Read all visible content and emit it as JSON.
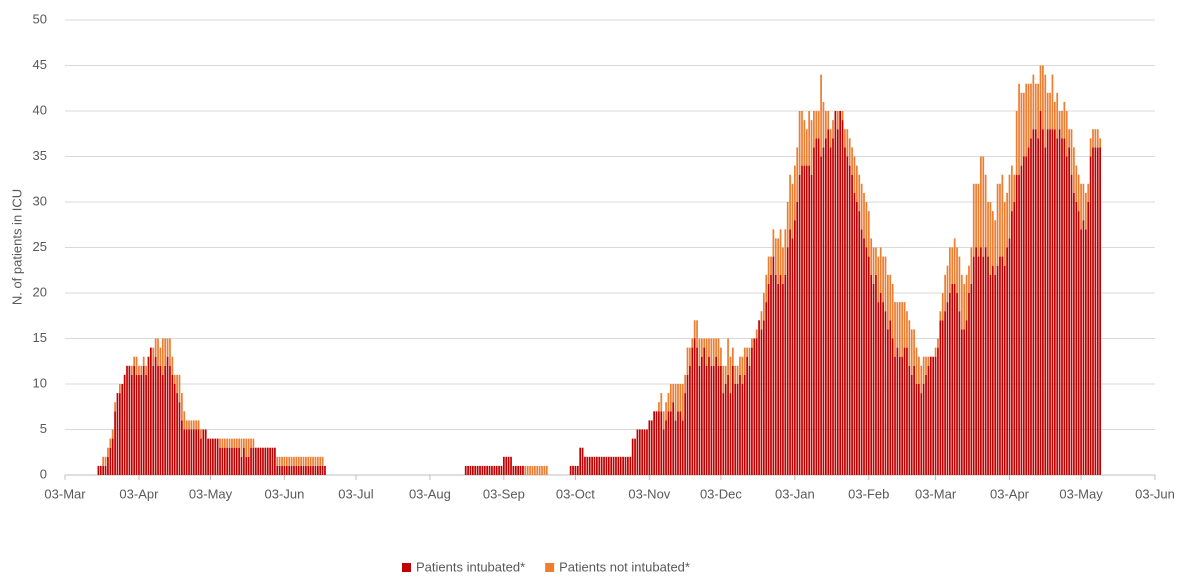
{
  "chart_data": {
    "type": "stacked_bar",
    "y_label": "N. of patients in ICU",
    "xlim": [
      0,
      457
    ],
    "xticks": [
      {
        "value": 0,
        "label": "03-Mar"
      },
      {
        "value": 31,
        "label": "03-Apr"
      },
      {
        "value": 61,
        "label": "03-May"
      },
      {
        "value": 92,
        "label": "03-Jun"
      },
      {
        "value": 122,
        "label": "03-Jul"
      },
      {
        "value": 153,
        "label": "03-Aug"
      },
      {
        "value": 184,
        "label": "03-Sep"
      },
      {
        "value": 214,
        "label": "03-Oct"
      },
      {
        "value": 245,
        "label": "03-Nov"
      },
      {
        "value": 275,
        "label": "03-Dec"
      },
      {
        "value": 306,
        "label": "03-Jan"
      },
      {
        "value": 337,
        "label": "03-Feb"
      },
      {
        "value": 365,
        "label": "03-Mar"
      },
      {
        "value": 396,
        "label": "03-Apr"
      },
      {
        "value": 426,
        "label": "03-May"
      },
      {
        "value": 457,
        "label": "03-Jun"
      }
    ],
    "ylim": [
      0,
      50
    ],
    "yticks": [
      0,
      5,
      10,
      15,
      20,
      25,
      30,
      35,
      40,
      45,
      50
    ],
    "grid": true,
    "legend": "bottom",
    "x": [
      14,
      15,
      16,
      17,
      18,
      19,
      20,
      21,
      22,
      23,
      24,
      25,
      26,
      27,
      28,
      29,
      30,
      31,
      32,
      33,
      34,
      35,
      36,
      37,
      38,
      39,
      40,
      41,
      42,
      43,
      44,
      45,
      46,
      47,
      48,
      49,
      50,
      51,
      52,
      53,
      54,
      55,
      56,
      57,
      58,
      59,
      60,
      61,
      62,
      63,
      64,
      65,
      66,
      67,
      68,
      69,
      70,
      71,
      72,
      73,
      74,
      75,
      76,
      77,
      78,
      79,
      80,
      81,
      82,
      83,
      84,
      85,
      86,
      87,
      88,
      89,
      90,
      91,
      92,
      93,
      94,
      95,
      96,
      97,
      98,
      99,
      100,
      101,
      102,
      103,
      104,
      105,
      106,
      107,
      108,
      109,
      168,
      169,
      170,
      171,
      172,
      173,
      174,
      175,
      176,
      177,
      178,
      179,
      180,
      181,
      182,
      183,
      184,
      185,
      186,
      187,
      188,
      189,
      190,
      191,
      192,
      193,
      194,
      195,
      196,
      197,
      198,
      199,
      200,
      201,
      202,
      212,
      213,
      214,
      215,
      216,
      217,
      218,
      219,
      220,
      221,
      222,
      223,
      224,
      225,
      226,
      227,
      228,
      229,
      230,
      231,
      232,
      233,
      234,
      235,
      236,
      237,
      238,
      239,
      240,
      241,
      242,
      243,
      244,
      245,
      246,
      247,
      248,
      249,
      250,
      251,
      252,
      253,
      254,
      255,
      256,
      257,
      258,
      259,
      260,
      261,
      262,
      263,
      264,
      265,
      266,
      267,
      268,
      269,
      270,
      271,
      272,
      273,
      274,
      275,
      276,
      277,
      278,
      279,
      280,
      281,
      282,
      283,
      284,
      285,
      286,
      287,
      288,
      289,
      290,
      291,
      292,
      293,
      294,
      295,
      296,
      297,
      298,
      299,
      300,
      301,
      302,
      303,
      304,
      305,
      306,
      307,
      308,
      309,
      310,
      311,
      312,
      313,
      314,
      315,
      316,
      317,
      318,
      319,
      320,
      321,
      322,
      323,
      324,
      325,
      326,
      327,
      328,
      329,
      330,
      331,
      332,
      333,
      334,
      335,
      336,
      337,
      338,
      339,
      340,
      341,
      342,
      343,
      344,
      345,
      346,
      347,
      348,
      349,
      350,
      351,
      352,
      353,
      354,
      355,
      356,
      357,
      358,
      359,
      360,
      361,
      362,
      363,
      364,
      365,
      366,
      367,
      368,
      369,
      370,
      371,
      372,
      373,
      374,
      375,
      376,
      377,
      378,
      379,
      380,
      381,
      382,
      383,
      384,
      385,
      386,
      387,
      388,
      389,
      390,
      391,
      392,
      393,
      394,
      395,
      396,
      397,
      398,
      399,
      400,
      401,
      402,
      403,
      404,
      405,
      406,
      407,
      408,
      409,
      410,
      411,
      412,
      413,
      414,
      415,
      416,
      417,
      418,
      419,
      420,
      421,
      422,
      423,
      424,
      425,
      426,
      427,
      428,
      429,
      430,
      431,
      432,
      433,
      434
    ],
    "series": [
      {
        "name": "Patients intubated*",
        "color": "#c00000",
        "values": [
          1,
          1,
          1,
          1,
          2,
          3,
          4,
          7,
          9,
          9,
          10,
          11,
          12,
          12,
          11,
          12,
          11,
          11,
          11,
          12,
          11,
          13,
          14,
          12,
          13,
          12,
          12,
          11,
          12,
          13,
          12,
          11,
          10,
          9,
          8,
          6,
          5,
          5,
          5,
          5,
          5,
          5,
          5,
          4,
          5,
          5,
          4,
          4,
          4,
          4,
          4,
          3,
          3,
          3,
          3,
          3,
          3,
          3,
          3,
          3,
          2,
          3,
          2,
          2,
          3,
          3,
          3,
          3,
          3,
          3,
          3,
          3,
          3,
          3,
          3,
          1,
          1,
          1,
          1,
          1,
          1,
          1,
          1,
          1,
          1,
          1,
          1,
          1,
          1,
          1,
          1,
          1,
          1,
          1,
          1,
          1,
          1,
          1,
          1,
          1,
          1,
          1,
          1,
          1,
          1,
          1,
          1,
          1,
          1,
          1,
          1,
          1,
          2,
          2,
          2,
          2,
          1,
          1,
          1,
          1,
          1,
          0,
          0,
          0,
          0,
          0,
          0,
          0,
          0,
          0,
          0,
          1,
          1,
          1,
          1,
          3,
          3,
          2,
          2,
          2,
          2,
          2,
          2,
          2,
          2,
          2,
          2,
          2,
          2,
          2,
          2,
          2,
          2,
          2,
          2,
          2,
          2,
          4,
          4,
          5,
          5,
          5,
          5,
          5,
          6,
          6,
          7,
          7,
          7,
          7,
          5,
          6,
          7,
          7,
          8,
          6,
          7,
          7,
          6,
          9,
          11,
          12,
          14,
          15,
          14,
          12,
          13,
          14,
          12,
          13,
          12,
          12,
          13,
          12,
          12,
          9,
          10,
          11,
          9,
          12,
          10,
          10,
          11,
          10,
          11,
          13,
          12,
          14,
          15,
          15,
          17,
          16,
          17,
          19,
          21,
          22,
          24,
          22,
          21,
          22,
          21,
          22,
          25,
          27,
          26,
          28,
          30,
          33,
          34,
          34,
          34,
          34,
          33,
          36,
          37,
          37,
          35,
          36,
          37,
          38,
          36,
          37,
          40,
          38,
          40,
          39,
          36,
          35,
          34,
          33,
          31,
          30,
          29,
          27,
          26,
          25,
          24,
          22,
          21,
          22,
          19,
          20,
          19,
          18,
          16,
          17,
          15,
          13,
          14,
          13,
          13,
          14,
          14,
          12,
          11,
          12,
          10,
          10,
          9,
          10,
          11,
          12,
          13,
          13,
          13,
          14,
          17,
          17,
          18,
          19,
          20,
          21,
          21,
          20,
          18,
          16,
          16,
          17,
          20,
          21,
          24,
          25,
          24,
          25,
          24,
          25,
          24,
          22,
          23,
          22,
          23,
          24,
          24,
          23,
          25,
          26,
          29,
          30,
          33,
          33,
          34,
          35,
          35,
          36,
          37,
          38,
          38,
          37,
          40,
          38,
          36,
          38,
          38,
          38,
          38,
          37,
          38,
          37,
          37,
          35,
          36,
          33,
          31,
          30,
          29,
          27,
          28,
          27,
          30,
          35,
          36,
          36,
          36,
          36
        ]
      },
      {
        "name": "Patients not intubated*",
        "color": "#ed7d31",
        "values": [
          0,
          0,
          1,
          1,
          1,
          1,
          1,
          1,
          0,
          1,
          0,
          0,
          0,
          0,
          1,
          1,
          2,
          1,
          1,
          1,
          1,
          0,
          0,
          2,
          2,
          3,
          2,
          4,
          3,
          2,
          3,
          2,
          1,
          2,
          3,
          3,
          2,
          1,
          1,
          1,
          1,
          1,
          1,
          1,
          0,
          0,
          0,
          0,
          0,
          0,
          0,
          1,
          1,
          1,
          1,
          1,
          1,
          1,
          1,
          1,
          2,
          1,
          2,
          2,
          1,
          1,
          0,
          0,
          0,
          0,
          0,
          0,
          0,
          0,
          0,
          1,
          1,
          1,
          1,
          1,
          1,
          1,
          1,
          1,
          1,
          1,
          1,
          1,
          1,
          1,
          1,
          1,
          1,
          1,
          1,
          0,
          0,
          0,
          0,
          0,
          0,
          0,
          0,
          0,
          0,
          0,
          0,
          0,
          0,
          0,
          0,
          0,
          0,
          0,
          0,
          0,
          0,
          0,
          0,
          0,
          0,
          1,
          1,
          1,
          1,
          1,
          1,
          1,
          1,
          1,
          1,
          0,
          0,
          0,
          0,
          0,
          0,
          0,
          0,
          0,
          0,
          0,
          0,
          0,
          0,
          0,
          0,
          0,
          0,
          0,
          0,
          0,
          0,
          0,
          0,
          0,
          0,
          0,
          0,
          0,
          0,
          0,
          0,
          0,
          0,
          0,
          0,
          0,
          1,
          2,
          2,
          2,
          2,
          3,
          2,
          4,
          3,
          3,
          4,
          2,
          3,
          2,
          1,
          2,
          3,
          3,
          2,
          1,
          3,
          2,
          3,
          3,
          2,
          3,
          2,
          3,
          2,
          4,
          4,
          2,
          2,
          2,
          2,
          3,
          3,
          1,
          2,
          1,
          0,
          1,
          0,
          2,
          3,
          3,
          3,
          2,
          3,
          4,
          5,
          5,
          4,
          5,
          5,
          6,
          6,
          6,
          6,
          7,
          6,
          5,
          4,
          6,
          6,
          4,
          3,
          3,
          9,
          5,
          3,
          2,
          2,
          2,
          0,
          2,
          0,
          1,
          2,
          3,
          3,
          3,
          4,
          4,
          4,
          5,
          5,
          5,
          5,
          4,
          4,
          3,
          5,
          5,
          5,
          6,
          6,
          5,
          6,
          6,
          5,
          6,
          6,
          5,
          4,
          5,
          5,
          4,
          4,
          3,
          3,
          3,
          2,
          1,
          0,
          0,
          1,
          1,
          1,
          3,
          4,
          4,
          5,
          4,
          5,
          5,
          6,
          6,
          5,
          5,
          3,
          4,
          8,
          7,
          8,
          10,
          11,
          8,
          6,
          8,
          6,
          6,
          9,
          8,
          9,
          7,
          6,
          7,
          5,
          3,
          7,
          10,
          8,
          7,
          8,
          7,
          6,
          6,
          5,
          6,
          5,
          7,
          8,
          4,
          4,
          6,
          3,
          5,
          2,
          3,
          4,
          5,
          2,
          5,
          5,
          4,
          4,
          5,
          4,
          4,
          2,
          2,
          2,
          2,
          2,
          1
        ]
      }
    ]
  }
}
